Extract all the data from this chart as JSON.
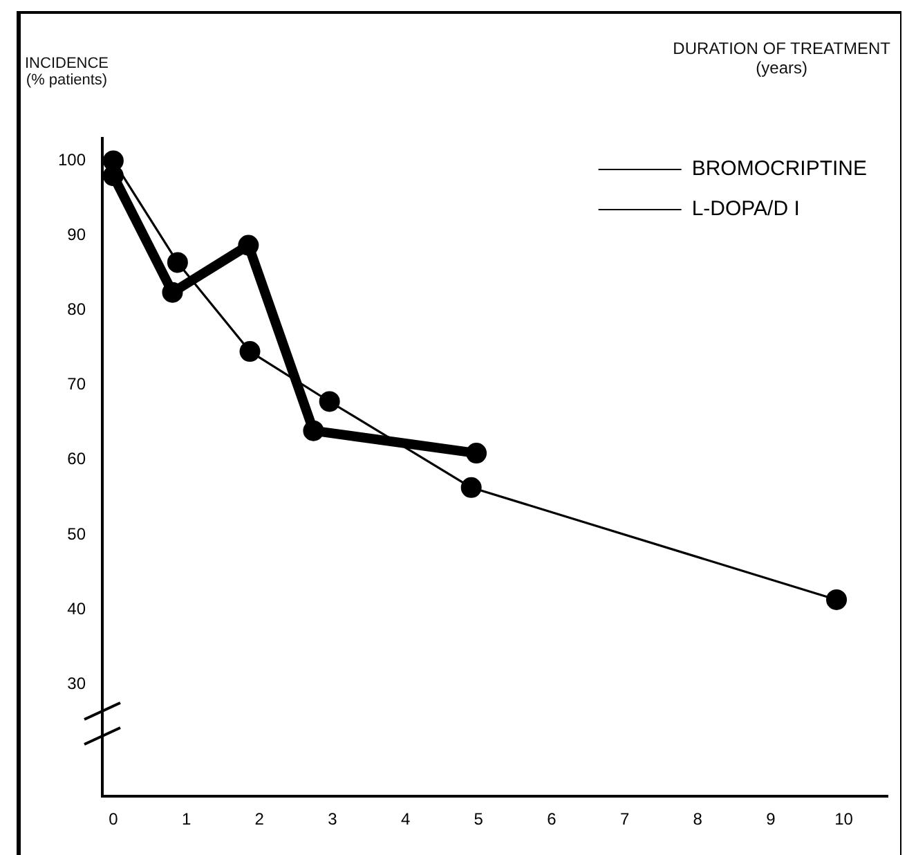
{
  "chart_data": {
    "type": "line",
    "xlabel": "DURATION OF TREATMENT\n(years)",
    "ylabel": "INCIDENCE\n(% patients)",
    "xlim": [
      -0.15,
      10.6
    ],
    "xticks": [
      0,
      1,
      2,
      3,
      4,
      5,
      6,
      7,
      8,
      9,
      10
    ],
    "ylim": [
      15,
      103
    ],
    "yticks": [
      30,
      40,
      50,
      60,
      70,
      80,
      90,
      100
    ],
    "grid": false,
    "legend": "top right",
    "marker": "circle",
    "line_style": "solid",
    "series": [
      {
        "name": "BROMOCRIPTINE",
        "color": "#000000",
        "x": [
          0,
          0.81,
          1.85,
          2.74,
          4.97
        ],
        "values": [
          98,
          82.4,
          88.7,
          63.9,
          60.9
        ]
      },
      {
        "name": "L-DOPA/D I",
        "color": "#000000",
        "x": [
          0,
          0.88,
          1.87,
          2.96,
          4.9,
          9.9
        ],
        "values": [
          100,
          86.4,
          74.5,
          67.8,
          56.3,
          41.3
        ]
      }
    ]
  }
}
